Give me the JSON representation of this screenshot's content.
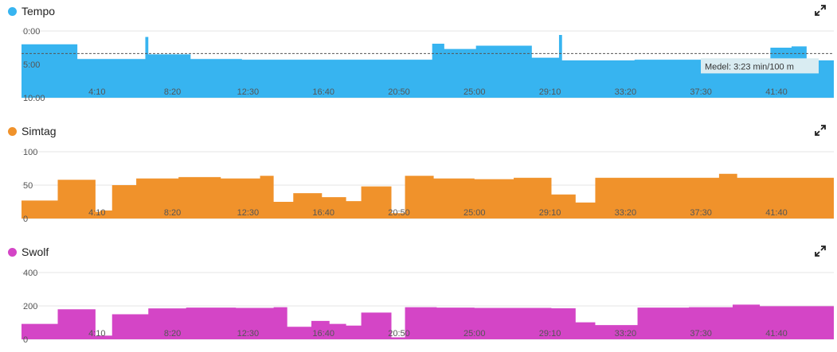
{
  "x_ticks": [
    "4:10",
    "8:20",
    "12:30",
    "16:40",
    "20:50",
    "25:00",
    "29:10",
    "33:20",
    "37:30",
    "41:40"
  ],
  "panels": [
    {
      "id": "tempo",
      "title": "Tempo",
      "color": "#37b4f0",
      "y_ticks": [
        "0:00",
        "5:00",
        "10:00"
      ],
      "icon": "expand-icon"
    },
    {
      "id": "simtag",
      "title": "Simtag",
      "color": "#f0922b",
      "y_ticks": [
        "100",
        "50",
        "0"
      ],
      "icon": "expand-icon"
    },
    {
      "id": "swolf",
      "title": "Swolf",
      "color": "#d445c6",
      "y_ticks": [
        "400",
        "200",
        "0"
      ],
      "icon": "expand-icon"
    }
  ],
  "average_label": "Medel: 3:23 min/100 m",
  "chart_data": [
    {
      "type": "area",
      "title": "Tempo",
      "unit": "min/100 m",
      "y_inverted": true,
      "ylim": [
        0,
        10
      ],
      "x_range": [
        0,
        2690
      ],
      "average": 3.38,
      "x": [
        0,
        180,
        185,
        360,
        370,
        410,
        420,
        560,
        730,
        1000,
        1120,
        1310,
        1360,
        1400,
        1460,
        1505,
        1560,
        1690,
        1780,
        1790,
        1810,
        2030,
        2040,
        2110,
        2370,
        2480,
        2550,
        2600,
        2610,
        2690
      ],
      "values": [
        2.0,
        2.0,
        4.2,
        4.2,
        4.2,
        0.9,
        3.5,
        4.2,
        4.3,
        4.3,
        4.3,
        4.3,
        1.9,
        2.7,
        2.7,
        2.2,
        2.2,
        4.0,
        0.6,
        4.4,
        4.4,
        4.3,
        4.3,
        4.3,
        4.2,
        2.5,
        2.3,
        4.4,
        4.4,
        4.4
      ]
    },
    {
      "type": "area",
      "title": "Simtag",
      "ylim": [
        0,
        100
      ],
      "x_range": [
        0,
        2690
      ],
      "x": [
        0,
        120,
        245,
        260,
        300,
        380,
        520,
        660,
        790,
        835,
        900,
        995,
        1075,
        1125,
        1225,
        1270,
        1365,
        1500,
        1630,
        1755,
        1835,
        1900,
        2040,
        2310,
        2370,
        2690
      ],
      "values": [
        27,
        58,
        10,
        12,
        50,
        60,
        62,
        60,
        64,
        25,
        38,
        32,
        26,
        48,
        8,
        64,
        60,
        59,
        61,
        36,
        24,
        61,
        61,
        67,
        61,
        61
      ]
    },
    {
      "type": "area",
      "title": "Swolf",
      "ylim": [
        0,
        400
      ],
      "x_range": [
        0,
        2690
      ],
      "x": [
        0,
        120,
        245,
        260,
        300,
        420,
        545,
        710,
        835,
        880,
        960,
        1020,
        1075,
        1125,
        1225,
        1270,
        1375,
        1500,
        1630,
        1755,
        1835,
        1900,
        2040,
        2210,
        2355,
        2445,
        2690
      ],
      "values": [
        92,
        180,
        20,
        22,
        150,
        185,
        190,
        188,
        192,
        75,
        110,
        92,
        82,
        160,
        12,
        192,
        190,
        188,
        188,
        186,
        102,
        85,
        190,
        192,
        208,
        198,
        192
      ]
    }
  ]
}
